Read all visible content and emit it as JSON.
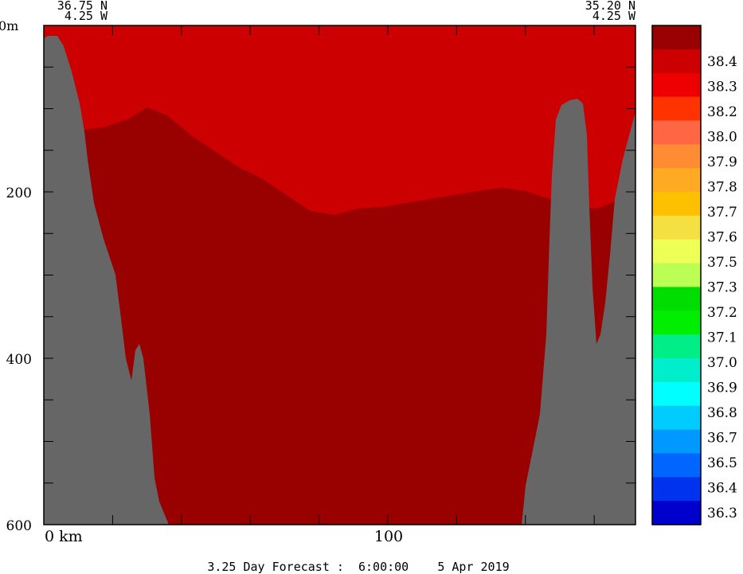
{
  "chart_data": {
    "type": "heatmap",
    "variable_hint": "salinity section",
    "start_point": {
      "lat": "36.75 N",
      "lon": "4.25 W"
    },
    "end_point": {
      "lat": "35.20 N",
      "lon": "4.25 W"
    },
    "y_axis": {
      "unit_label": "0m",
      "ticks": [
        "200",
        "400",
        "600"
      ],
      "range": [
        0,
        600
      ],
      "inverted": true
    },
    "x_axis": {
      "ticks": [
        "0 km",
        "100"
      ],
      "range_km": [
        0,
        172
      ]
    },
    "colorbar": {
      "labels": [
        "38.4",
        "38.3",
        "38.2",
        "38.0",
        "37.9",
        "37.8",
        "37.7",
        "37.6",
        "37.5",
        "37.3",
        "37.2",
        "37.1",
        "37.0",
        "36.9",
        "36.8",
        "36.7",
        "36.5",
        "36.4",
        "36.3"
      ],
      "colors": [
        "#990000",
        "#cc0000",
        "#ee0000",
        "#ff3300",
        "#ff6644",
        "#ff8c33",
        "#ffaa22",
        "#ffc000",
        "#f4e040",
        "#eeff55",
        "#bbff55",
        "#00dd00",
        "#00ee00",
        "#00ee88",
        "#00eecc",
        "#00ffff",
        "#00ccff",
        "#0099ff",
        "#0066ff",
        "#0033ee",
        "#0000cc"
      ]
    },
    "caption": "3.25 Day Forecast :  6:00:00    5 Apr 2019",
    "terrain_color": "#666666"
  }
}
